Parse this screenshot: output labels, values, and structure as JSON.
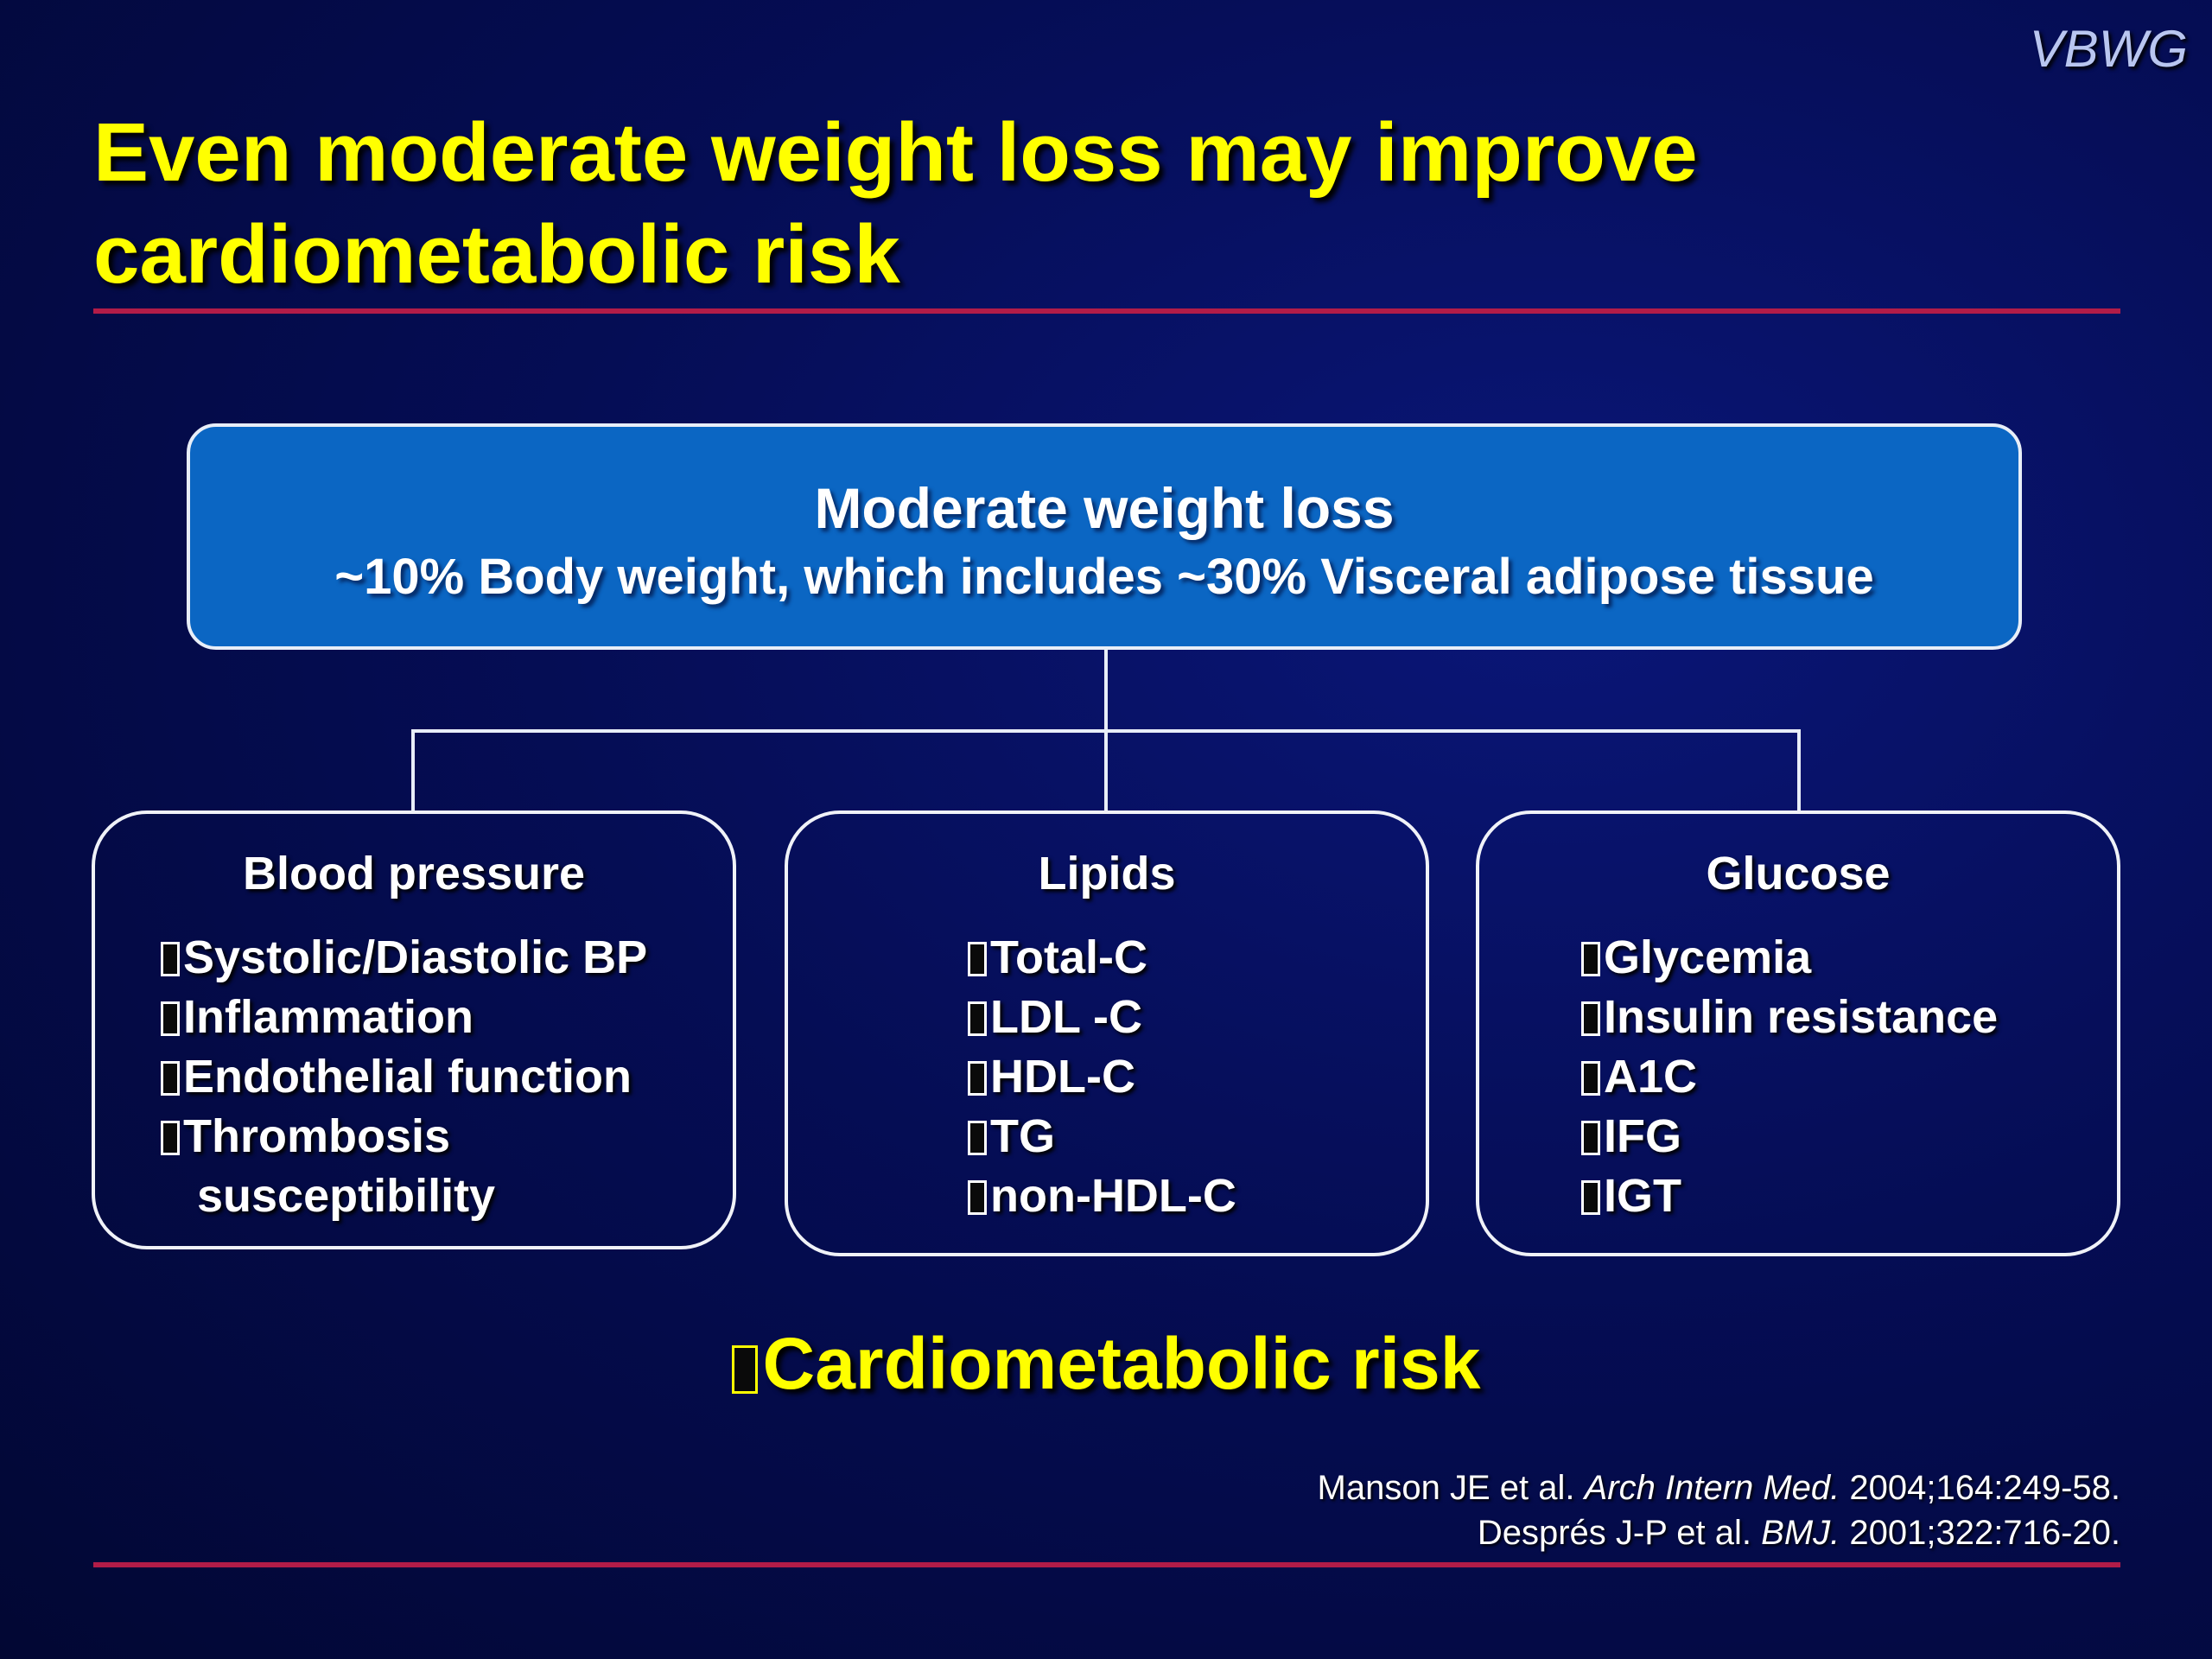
{
  "logo": "VBWG",
  "title": {
    "line1": "Even moderate weight loss may improve",
    "line2": "cardiometabolic risk"
  },
  "top_box": {
    "title": "Moderate weight loss",
    "subtitle": "~10% Body weight, which includes ~30% Visceral adipose tissue"
  },
  "boxes": [
    {
      "title": "Blood pressure",
      "items": [
        "Systolic/Diastolic BP",
        "Inflammation",
        "Endothelial function",
        "Thrombosis"
      ],
      "continuation": "susceptibility"
    },
    {
      "title": "Lipids",
      "items": [
        "Total-C",
        "LDL -C",
        "HDL-C",
        "TG",
        "non-HDL-C"
      ]
    },
    {
      "title": "Glucose",
      "items": [
        "Glycemia",
        "Insulin resistance",
        "A1C",
        "IFG",
        "IGT"
      ]
    }
  ],
  "bottom_statement": "Cardiometabolic risk",
  "references": [
    {
      "authors": "Manson JE et al. ",
      "journal": "Arch Intern Med.",
      "details": " 2004;164:249-58."
    },
    {
      "authors": "Després J-P et al. ",
      "journal": "BMJ.",
      "details": " 2001;322:716-20."
    }
  ],
  "colors": {
    "background": "#050d55",
    "title": "#ffff00",
    "rule": "#b21c48",
    "top_box": "#0b66c3",
    "text": "#ffffff"
  }
}
